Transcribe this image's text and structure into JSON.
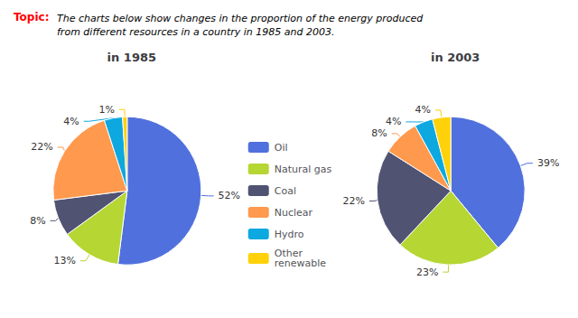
{
  "title": "Topic:",
  "subtitle": "The charts below show changes in the proportion of the energy produced\nfrom different resources in a country in 1985 and 2003.",
  "legend": "center",
  "chart_data": [
    {
      "type": "pie",
      "title": "in 1985",
      "categories": [
        "Oil",
        "Natural gas",
        "Coal",
        "Nuclear",
        "Hydro",
        "Other\nrenewable"
      ],
      "values": [
        52,
        13,
        8,
        22,
        4,
        1
      ],
      "value_labels": [
        "52%",
        "13%",
        "8%",
        "22%",
        "4%",
        "1%"
      ],
      "data_labels": true
    },
    {
      "type": "pie",
      "title": "in 2003",
      "categories": [
        "Oil",
        "Natural gas",
        "Coal",
        "Nuclear",
        "Hydro",
        "Other\nrenewable"
      ],
      "values": [
        39,
        23,
        22,
        8,
        4,
        4
      ],
      "value_labels": [
        "39%",
        "23%",
        "22%",
        "8%",
        "4%",
        "4%"
      ],
      "data_labels": true
    }
  ]
}
